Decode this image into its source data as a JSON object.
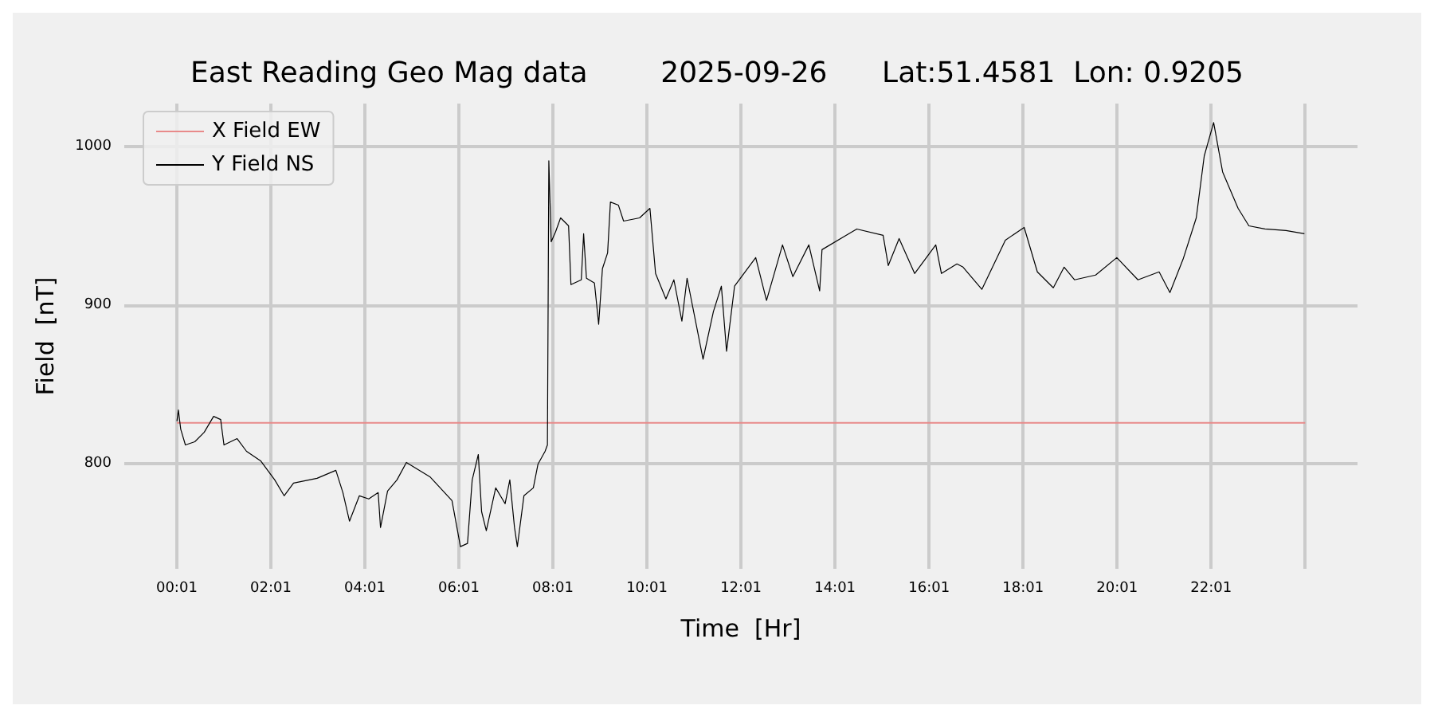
{
  "chart_data": {
    "type": "line",
    "title": "East Reading Geo Mag data        2025-09-26      Lat:51.4581  Lon: 0.9205",
    "xlabel": "Time  [Hr]",
    "ylabel": "Field  [nT]",
    "xlim": [
      -1.1,
      25.13
    ],
    "ylim": [
      734,
      1027
    ],
    "xticks": [
      {
        "value": 0.0167,
        "label": "00:01"
      },
      {
        "value": 2.0167,
        "label": "02:01"
      },
      {
        "value": 4.0167,
        "label": "04:01"
      },
      {
        "value": 6.0167,
        "label": "06:01"
      },
      {
        "value": 8.0167,
        "label": "08:01"
      },
      {
        "value": 10.0167,
        "label": "10:01"
      },
      {
        "value": 12.0167,
        "label": "12:01"
      },
      {
        "value": 14.0167,
        "label": "14:01"
      },
      {
        "value": 16.0167,
        "label": "16:01"
      },
      {
        "value": 18.0167,
        "label": "18:01"
      },
      {
        "value": 20.0167,
        "label": "20:01"
      },
      {
        "value": 22.0167,
        "label": "22:01"
      },
      {
        "value": 24.0167,
        "label": null
      }
    ],
    "yticks": [
      800,
      900,
      1000
    ],
    "grid": true,
    "legend": "top left",
    "marker": "none",
    "line_style": "solid",
    "series": [
      {
        "name": "X Field EW",
        "color": "#e88a8a",
        "x": [
          0.0167,
          24.0167
        ],
        "values": [
          826,
          826
        ]
      },
      {
        "name": "Y Field NS",
        "color": "#000000",
        "x": [
          0.02,
          0.05,
          0.1,
          0.2,
          0.4,
          0.6,
          0.8,
          0.95,
          1.02,
          1.3,
          1.5,
          1.8,
          2.1,
          2.3,
          2.5,
          3.0,
          3.4,
          3.55,
          3.69,
          3.9,
          4.1,
          4.3,
          4.35,
          4.5,
          4.7,
          4.9,
          5.4,
          5.87,
          6.05,
          6.2,
          6.3,
          6.43,
          6.5,
          6.6,
          6.8,
          7.0,
          7.1,
          7.2,
          7.26,
          7.4,
          7.6,
          7.7,
          7.85,
          7.9,
          7.93,
          7.98,
          8.07,
          8.18,
          8.35,
          8.4,
          8.62,
          8.67,
          8.73,
          8.9,
          8.99,
          9.07,
          9.18,
          9.24,
          9.41,
          9.52,
          9.86,
          10.08,
          10.2,
          10.42,
          10.59,
          10.76,
          10.87,
          11.21,
          11.43,
          11.6,
          11.71,
          11.88,
          12.33,
          12.56,
          12.9,
          13.12,
          13.46,
          13.69,
          13.74,
          14.25,
          14.48,
          15.04,
          15.15,
          15.38,
          15.71,
          16.16,
          16.28,
          16.61,
          16.74,
          17.14,
          17.64,
          18.04,
          18.32,
          18.66,
          18.89,
          19.11,
          19.56,
          20.01,
          20.46,
          20.91,
          21.14,
          21.42,
          21.7,
          21.87,
          22.07,
          22.26,
          22.59,
          22.82,
          23.16,
          23.61,
          24.0
        ],
        "values": [
          827,
          834,
          822,
          812,
          814,
          820,
          830,
          828,
          812,
          816,
          808,
          802,
          790,
          780,
          788,
          791,
          796,
          782,
          764,
          780,
          778,
          782,
          760,
          783,
          790,
          801,
          792,
          777,
          748,
          750,
          790,
          806,
          770,
          758,
          785,
          775,
          790,
          760,
          748,
          780,
          785,
          800,
          808,
          812,
          991,
          940,
          946,
          955,
          950,
          913,
          916,
          945,
          917,
          914,
          888,
          923,
          933,
          965,
          963,
          953,
          955,
          961,
          920,
          904,
          916,
          890,
          917,
          866,
          896,
          912,
          871,
          912,
          930,
          903,
          938,
          918,
          938,
          909,
          935,
          944,
          948,
          944,
          925,
          942,
          920,
          938,
          920,
          926,
          924,
          910,
          941,
          949,
          921,
          911,
          924,
          916,
          919,
          930,
          916,
          921,
          908,
          929,
          955,
          994,
          1015,
          984,
          961,
          950,
          948,
          947,
          945
        ]
      }
    ]
  }
}
